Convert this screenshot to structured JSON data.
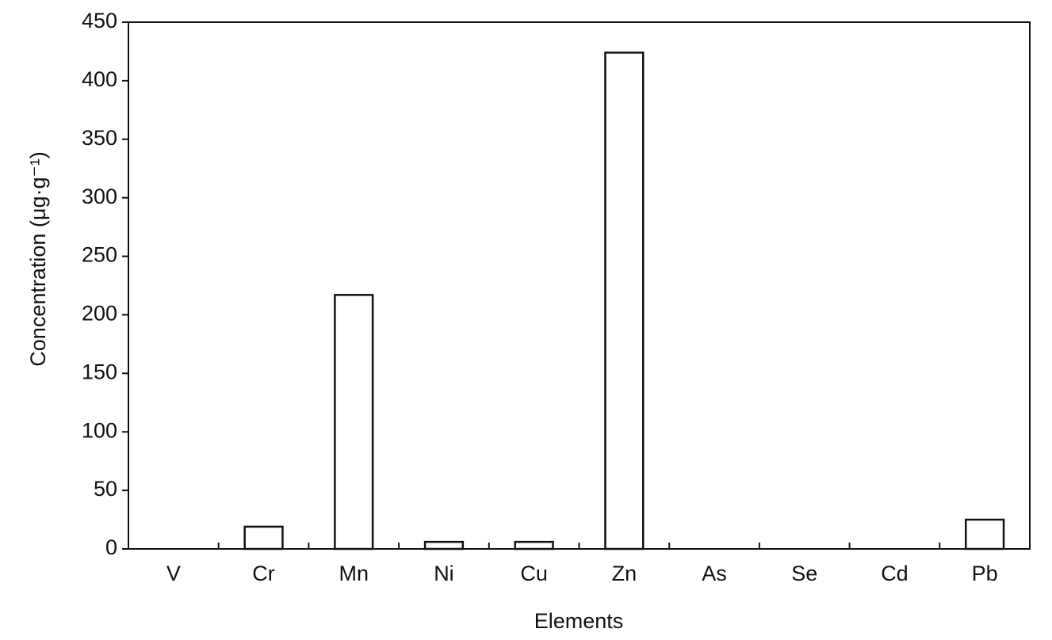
{
  "chart_data": {
    "type": "bar",
    "x_label": "Elements",
    "y_label": "Concentration (μg·g⁻¹)",
    "categories": [
      "V",
      "Cr",
      "Mn",
      "Ni",
      "Cu",
      "Zn",
      "As",
      "Se",
      "Cd",
      "Pb"
    ],
    "values": [
      0,
      19,
      217,
      6,
      6,
      424,
      0,
      0,
      0,
      25
    ],
    "color": "#ffffff",
    "edge_color": "#111111",
    "ylim": [
      0,
      450
    ],
    "yticks": [
      0,
      50,
      100,
      150,
      200,
      250,
      300,
      350,
      400,
      450
    ],
    "grid": false
  }
}
